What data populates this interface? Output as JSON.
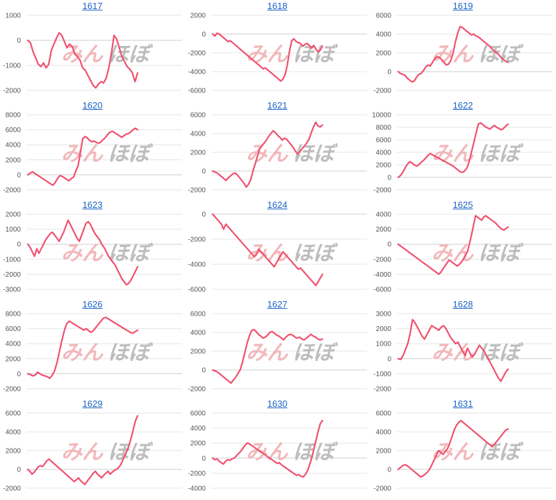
{
  "watermark": {
    "part1": "みん",
    "part2": "ほぼ"
  },
  "colors": {
    "series": "#f0506e",
    "title": "#1a62c6"
  },
  "chart_data": [
    {
      "type": "line",
      "title": "1617",
      "yticks": [
        1000,
        0,
        -1000,
        -2000
      ],
      "ylim": [
        -2000,
        1000
      ],
      "series": [
        {
          "values": [
            0,
            -100,
            -450,
            -700,
            -950,
            -1050,
            -900,
            -1100,
            -950,
            -400,
            -150,
            100,
            300,
            200,
            -50,
            -300,
            -150,
            -250,
            -550,
            -650,
            -800,
            -1100,
            -1200,
            -1400,
            -1600,
            -1800,
            -1900,
            -1750,
            -1650,
            -1700,
            -1500,
            -1100,
            -500,
            200,
            50,
            -300,
            -650,
            -850,
            -1050,
            -1150,
            -1300,
            -1650,
            -1300
          ]
        }
      ]
    },
    {
      "type": "line",
      "title": "1618",
      "yticks": [
        2000,
        0,
        -2000,
        -4000,
        -6000
      ],
      "ylim": [
        -6000,
        2000
      ],
      "series": [
        {
          "values": [
            0,
            -200,
            100,
            0,
            -200,
            -400,
            -600,
            -800,
            -700,
            -900,
            -1100,
            -1300,
            -1500,
            -1700,
            -1900,
            -2100,
            -2300,
            -2500,
            -2700,
            -2900,
            -3100,
            -3300,
            -3500,
            -3700,
            -3600,
            -3800,
            -4000,
            -4200,
            -4400,
            -4600,
            -4800,
            -5000,
            -4800,
            -4300,
            -3300,
            -1800,
            -700,
            -500,
            -800,
            -900,
            -1000,
            -1300,
            -1100,
            -1000,
            -1200,
            -1500,
            -1200,
            -1600,
            -1900,
            -1700,
            -1300
          ]
        }
      ]
    },
    {
      "type": "line",
      "title": "1619",
      "yticks": [
        6000,
        4000,
        2000,
        0,
        -2000
      ],
      "ylim": [
        -2000,
        6000
      ],
      "series": [
        {
          "values": [
            0,
            -200,
            -300,
            -400,
            -700,
            -900,
            -1100,
            -1000,
            -600,
            -300,
            -200,
            100,
            500,
            700,
            600,
            1000,
            1400,
            1600,
            1500,
            1300,
            1000,
            700,
            800,
            1200,
            2000,
            3200,
            4100,
            4800,
            4700,
            4500,
            4300,
            4100,
            3900,
            4000,
            3800,
            3700,
            3500,
            3300,
            3100,
            2900,
            2700,
            2400,
            2200,
            2000,
            1800,
            1500,
            1300,
            1100,
            1000
          ]
        }
      ]
    },
    {
      "type": "line",
      "title": "1620",
      "yticks": [
        8000,
        6000,
        4000,
        2000,
        0,
        -2000
      ],
      "ylim": [
        -2000,
        8000
      ],
      "series": [
        {
          "values": [
            0,
            200,
            400,
            200,
            0,
            -200,
            -400,
            -600,
            -800,
            -1000,
            -1200,
            -1400,
            -1000,
            -500,
            -100,
            -200,
            -400,
            -600,
            -800,
            -500,
            -300,
            500,
            1200,
            3000,
            4800,
            5100,
            4900,
            4600,
            4400,
            4500,
            4300,
            4200,
            4400,
            4700,
            5000,
            5400,
            5700,
            5800,
            5600,
            5400,
            5200,
            5000,
            5200,
            5400,
            5500,
            5700,
            6000,
            6200,
            6000
          ]
        }
      ]
    },
    {
      "type": "line",
      "title": "1621",
      "yticks": [
        6000,
        4000,
        2000,
        0,
        -2000
      ],
      "ylim": [
        -2000,
        6000
      ],
      "series": [
        {
          "values": [
            0,
            -100,
            -200,
            -400,
            -600,
            -800,
            -1000,
            -700,
            -500,
            -300,
            -200,
            -400,
            -700,
            -1000,
            -1300,
            -1700,
            -1400,
            -900,
            0,
            800,
            1600,
            2400,
            2700,
            3000,
            3300,
            3700,
            4000,
            4300,
            4100,
            3800,
            3600,
            3300,
            3500,
            3400,
            3100,
            2800,
            2500,
            2100,
            1800,
            2100,
            2400,
            2700,
            3000,
            3400,
            4100,
            4700,
            5200,
            4800,
            4700,
            4900
          ]
        }
      ]
    },
    {
      "type": "line",
      "title": "1622",
      "yticks": [
        10000,
        8000,
        6000,
        4000,
        2000,
        0,
        -2000
      ],
      "ylim": [
        -2000,
        10000
      ],
      "series": [
        {
          "values": [
            0,
            300,
            800,
            1500,
            2100,
            2500,
            2300,
            2000,
            1800,
            2000,
            2400,
            2700,
            3100,
            3500,
            3800,
            3600,
            3400,
            3200,
            3000,
            2800,
            2600,
            2400,
            2200,
            2000,
            1800,
            1500,
            1200,
            900,
            800,
            1000,
            1500,
            2500,
            4000,
            5500,
            7000,
            8500,
            8700,
            8400,
            8100,
            7900,
            7700,
            8000,
            8300,
            8000,
            7800,
            7600,
            7800,
            8200,
            8500
          ]
        }
      ]
    },
    {
      "type": "line",
      "title": "1623",
      "yticks": [
        2000,
        1000,
        0,
        -1000,
        -2000,
        -3000
      ],
      "ylim": [
        -3000,
        2000
      ],
      "series": [
        {
          "values": [
            0,
            -200,
            -500,
            -800,
            -300,
            -600,
            -300,
            0,
            300,
            500,
            700,
            800,
            600,
            400,
            200,
            500,
            800,
            1200,
            1600,
            1300,
            1000,
            700,
            400,
            200,
            600,
            1000,
            1400,
            1500,
            1300,
            1000,
            700,
            500,
            300,
            0,
            -200,
            -500,
            -800,
            -1000,
            -1200,
            -1400,
            -1700,
            -2000,
            -2300,
            -2500,
            -2700,
            -2600,
            -2400,
            -2100,
            -1800,
            -1500
          ]
        }
      ]
    },
    {
      "type": "line",
      "title": "1624",
      "yticks": [
        0,
        -2000,
        -4000,
        -6000
      ],
      "ylim": [
        -6000,
        0
      ],
      "series": [
        {
          "values": [
            0,
            -200,
            -400,
            -600,
            -800,
            -1200,
            -800,
            -1000,
            -1200,
            -1400,
            -1600,
            -1800,
            -2000,
            -2200,
            -2400,
            -2600,
            -2800,
            -3000,
            -3200,
            -3400,
            -3200,
            -2800,
            -3000,
            -3200,
            -3400,
            -3600,
            -3800,
            -4000,
            -4200,
            -3900,
            -3600,
            -3300,
            -3000,
            -3200,
            -3400,
            -3600,
            -3800,
            -4000,
            -4200,
            -4400,
            -4300,
            -4500,
            -4700,
            -4900,
            -5100,
            -5300,
            -5500,
            -5700,
            -5400,
            -5100,
            -4800
          ]
        }
      ]
    },
    {
      "type": "line",
      "title": "1625",
      "yticks": [
        4000,
        2000,
        0,
        -2000,
        -4000,
        -6000
      ],
      "ylim": [
        -6000,
        4000
      ],
      "series": [
        {
          "values": [
            0,
            -200,
            -400,
            -600,
            -800,
            -1000,
            -1200,
            -1400,
            -1600,
            -1800,
            -2000,
            -2200,
            -2400,
            -2600,
            -2800,
            -3000,
            -3200,
            -3400,
            -3600,
            -3800,
            -4000,
            -3700,
            -3300,
            -2900,
            -2500,
            -2100,
            -2300,
            -2500,
            -2700,
            -2900,
            -2700,
            -2400,
            -2000,
            -1500,
            -1000,
            0,
            1200,
            2500,
            3800,
            3600,
            3400,
            3200,
            3600,
            3800,
            3600,
            3400,
            3200,
            3000,
            2800,
            2500,
            2200,
            2000,
            1900,
            2100,
            2300
          ]
        }
      ]
    },
    {
      "type": "line",
      "title": "1626",
      "yticks": [
        8000,
        6000,
        4000,
        2000,
        0,
        -2000
      ],
      "ylim": [
        -2000,
        8000
      ],
      "series": [
        {
          "values": [
            0,
            -100,
            -300,
            -200,
            200,
            0,
            -200,
            -300,
            -400,
            -600,
            -200,
            400,
            1500,
            3000,
            4500,
            5800,
            6700,
            7000,
            6800,
            6600,
            6400,
            6200,
            6000,
            5800,
            6000,
            5700,
            5500,
            5800,
            6200,
            6600,
            7000,
            7400,
            7500,
            7300,
            7100,
            6900,
            6700,
            6500,
            6300,
            6100,
            5900,
            5700,
            5500,
            5400,
            5600,
            5800
          ]
        }
      ]
    },
    {
      "type": "line",
      "title": "1627",
      "yticks": [
        6000,
        4000,
        2000,
        0,
        -2000
      ],
      "ylim": [
        -2000,
        6000
      ],
      "series": [
        {
          "values": [
            0,
            -100,
            -200,
            -400,
            -600,
            -800,
            -1000,
            -1200,
            -1400,
            -1100,
            -800,
            -400,
            0,
            800,
            1800,
            2800,
            3600,
            4200,
            4300,
            4100,
            3800,
            3600,
            3400,
            3500,
            3700,
            4000,
            4100,
            3900,
            3700,
            3600,
            3400,
            3200,
            3500,
            3700,
            3800,
            3700,
            3500,
            3400,
            3500,
            3300,
            3200,
            3400,
            3600,
            3800,
            3600,
            3500,
            3300,
            3200,
            3300
          ]
        }
      ]
    },
    {
      "type": "line",
      "title": "1628",
      "yticks": [
        3000,
        2000,
        1000,
        0,
        -1000,
        -2000
      ],
      "ylim": [
        -2000,
        3000
      ],
      "series": [
        {
          "values": [
            0,
            -50,
            200,
            600,
            1000,
            1700,
            2600,
            2400,
            2100,
            1800,
            1500,
            1300,
            1600,
            1900,
            2200,
            2100,
            2000,
            1900,
            2100,
            2200,
            2000,
            1700,
            1400,
            1200,
            1000,
            1100,
            800,
            500,
            200,
            700,
            400,
            100,
            300,
            600,
            900,
            700,
            500,
            200,
            -100,
            -400,
            -700,
            -1000,
            -1300,
            -1500,
            -1200,
            -900,
            -700
          ]
        }
      ]
    },
    {
      "type": "line",
      "title": "1629",
      "yticks": [
        6000,
        4000,
        2000,
        0,
        -2000
      ],
      "ylim": [
        -2000,
        6000
      ],
      "series": [
        {
          "values": [
            0,
            -200,
            -500,
            -300,
            0,
            300,
            400,
            300,
            600,
            900,
            1100,
            900,
            700,
            500,
            300,
            100,
            -100,
            -300,
            -500,
            -700,
            -900,
            -1100,
            -1300,
            -1100,
            -900,
            -1200,
            -1400,
            -1600,
            -1300,
            -1000,
            -700,
            -400,
            -200,
            -500,
            -700,
            -900,
            -600,
            -400,
            -200,
            -500,
            -300,
            -100,
            0,
            200,
            500,
            1000,
            1500,
            2000,
            2600,
            3400,
            4300,
            5200,
            5700
          ]
        }
      ]
    },
    {
      "type": "line",
      "title": "1630",
      "yticks": [
        6000,
        4000,
        2000,
        0,
        -2000,
        -4000
      ],
      "ylim": [
        -4000,
        6000
      ],
      "series": [
        {
          "values": [
            0,
            -200,
            -100,
            -400,
            -600,
            -800,
            -400,
            -200,
            -300,
            -100,
            0,
            300,
            600,
            900,
            1300,
            1700,
            2000,
            1900,
            1700,
            1500,
            1300,
            1100,
            900,
            700,
            500,
            300,
            100,
            -100,
            -300,
            -500,
            -700,
            -600,
            -900,
            -1100,
            -1300,
            -1500,
            -1700,
            -1900,
            -2100,
            -2300,
            -2200,
            -2400,
            -2500,
            -2200,
            -1700,
            -900,
            0,
            1200,
            2400,
            3600,
            4600,
            5000
          ]
        }
      ]
    },
    {
      "type": "line",
      "title": "1631",
      "yticks": [
        6000,
        4000,
        2000,
        0,
        -2000
      ],
      "ylim": [
        -2000,
        6000
      ],
      "series": [
        {
          "values": [
            0,
            200,
            400,
            500,
            400,
            200,
            0,
            -200,
            -400,
            -600,
            -800,
            -700,
            -500,
            -300,
            0,
            500,
            1000,
            1500,
            2000,
            1800,
            1600,
            1900,
            2200,
            2800,
            3500,
            4200,
            4700,
            5000,
            5200,
            5000,
            4800,
            4600,
            4400,
            4200,
            4000,
            3800,
            3600,
            3400,
            3200,
            3000,
            2800,
            2600,
            2400,
            2700,
            3000,
            3300,
            3600,
            3900,
            4200,
            4300
          ]
        }
      ]
    }
  ]
}
